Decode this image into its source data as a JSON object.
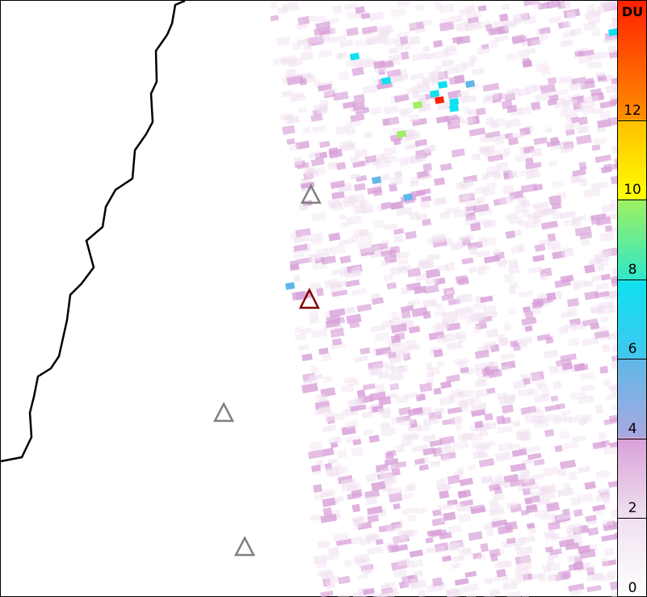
{
  "map": {
    "coastline_color": "#000000",
    "markers": [
      {
        "type": "volcano-triangle",
        "color": "#808080"
      },
      {
        "type": "volcano-triangle",
        "color": "#800000"
      },
      {
        "type": "volcano-triangle",
        "color": "#808080"
      },
      {
        "type": "volcano-triangle",
        "color": "#808080"
      }
    ]
  },
  "colorbar": {
    "unit": "DU",
    "range": [
      0,
      15
    ],
    "ticks": [
      "0",
      "2",
      "4",
      "6",
      "8",
      "10",
      "12"
    ],
    "colors": [
      "#ffffff",
      "#f0e0f0",
      "#d8a0d8",
      "#a8a8e0",
      "#60b8e8",
      "#10e0f0",
      "#30e8c8",
      "#a0f060",
      "#ffff00",
      "#ffc000",
      "#ff9000",
      "#ff2000"
    ]
  }
}
